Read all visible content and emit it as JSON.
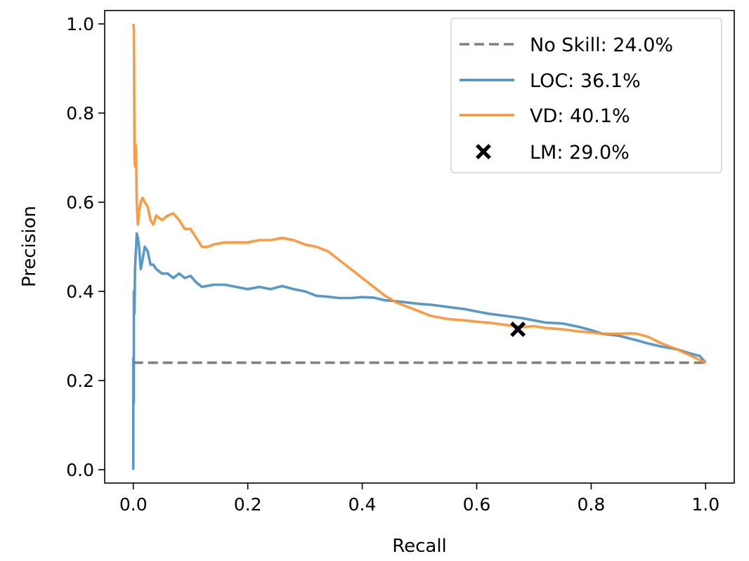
{
  "chart_data": {
    "type": "line",
    "title": "",
    "xlabel": "Recall",
    "ylabel": "Precision",
    "xlim": [
      -0.05,
      1.05
    ],
    "ylim": [
      -0.03,
      1.03
    ],
    "xticks": [
      "0.0",
      "0.2",
      "0.4",
      "0.6",
      "0.8",
      "1.0"
    ],
    "yticks": [
      "0.0",
      "0.2",
      "0.4",
      "0.6",
      "0.8",
      "1.0"
    ],
    "grid": false,
    "legend_position": "top-right",
    "series": [
      {
        "name": "No Skill: 24.0%",
        "style": "dashed",
        "color": "#808080",
        "x": [
          0.0,
          1.0
        ],
        "y": [
          0.24,
          0.24
        ]
      },
      {
        "name": "LOC: 36.1%",
        "style": "solid",
        "color": "#4a8fc2",
        "x": [
          0.0,
          0.0,
          0.001,
          0.001,
          0.002,
          0.003,
          0.004,
          0.005,
          0.006,
          0.008,
          0.01,
          0.013,
          0.016,
          0.02,
          0.025,
          0.03,
          0.035,
          0.04,
          0.05,
          0.06,
          0.07,
          0.08,
          0.09,
          0.1,
          0.11,
          0.12,
          0.14,
          0.16,
          0.18,
          0.2,
          0.22,
          0.24,
          0.26,
          0.28,
          0.3,
          0.32,
          0.34,
          0.36,
          0.38,
          0.4,
          0.42,
          0.44,
          0.46,
          0.48,
          0.5,
          0.52,
          0.55,
          0.58,
          0.6,
          0.62,
          0.65,
          0.68,
          0.7,
          0.72,
          0.75,
          0.78,
          0.8,
          0.82,
          0.85,
          0.88,
          0.9,
          0.92,
          0.95,
          0.97,
          0.99,
          1.0
        ],
        "y": [
          0.0,
          0.25,
          0.15,
          0.4,
          0.35,
          0.45,
          0.48,
          0.5,
          0.53,
          0.52,
          0.5,
          0.45,
          0.47,
          0.5,
          0.49,
          0.46,
          0.46,
          0.45,
          0.44,
          0.44,
          0.43,
          0.44,
          0.43,
          0.435,
          0.42,
          0.41,
          0.415,
          0.415,
          0.41,
          0.405,
          0.41,
          0.405,
          0.412,
          0.405,
          0.4,
          0.39,
          0.388,
          0.385,
          0.385,
          0.387,
          0.386,
          0.38,
          0.378,
          0.375,
          0.372,
          0.37,
          0.365,
          0.36,
          0.355,
          0.35,
          0.345,
          0.34,
          0.335,
          0.33,
          0.328,
          0.32,
          0.313,
          0.305,
          0.3,
          0.29,
          0.283,
          0.277,
          0.27,
          0.262,
          0.255,
          0.24
        ]
      },
      {
        "name": "VD: 40.1%",
        "style": "solid",
        "color": "#fb9434",
        "x": [
          0.0,
          0.001,
          0.002,
          0.003,
          0.004,
          0.005,
          0.006,
          0.008,
          0.01,
          0.013,
          0.016,
          0.02,
          0.025,
          0.03,
          0.035,
          0.04,
          0.05,
          0.06,
          0.07,
          0.08,
          0.09,
          0.1,
          0.11,
          0.12,
          0.13,
          0.14,
          0.16,
          0.18,
          0.2,
          0.22,
          0.24,
          0.26,
          0.28,
          0.3,
          0.32,
          0.34,
          0.36,
          0.38,
          0.4,
          0.42,
          0.44,
          0.46,
          0.48,
          0.5,
          0.52,
          0.55,
          0.58,
          0.6,
          0.62,
          0.65,
          0.68,
          0.7,
          0.72,
          0.75,
          0.78,
          0.8,
          0.82,
          0.85,
          0.87,
          0.88,
          0.9,
          0.92,
          0.95,
          0.97,
          1.0
        ],
        "y": [
          1.0,
          0.99,
          0.7,
          0.68,
          0.73,
          0.7,
          0.6,
          0.55,
          0.58,
          0.6,
          0.61,
          0.6,
          0.59,
          0.56,
          0.55,
          0.57,
          0.56,
          0.57,
          0.575,
          0.56,
          0.54,
          0.54,
          0.52,
          0.5,
          0.5,
          0.505,
          0.51,
          0.51,
          0.51,
          0.515,
          0.515,
          0.52,
          0.515,
          0.505,
          0.5,
          0.49,
          0.47,
          0.45,
          0.43,
          0.41,
          0.39,
          0.375,
          0.365,
          0.355,
          0.345,
          0.338,
          0.335,
          0.332,
          0.33,
          0.325,
          0.32,
          0.322,
          0.318,
          0.315,
          0.31,
          0.308,
          0.305,
          0.305,
          0.306,
          0.305,
          0.298,
          0.285,
          0.27,
          0.258,
          0.24
        ]
      },
      {
        "name": "LM: 29.0%",
        "style": "marker",
        "marker": "X",
        "color": "#000000",
        "x": [
          0.672
        ],
        "y": [
          0.315
        ]
      }
    ]
  }
}
